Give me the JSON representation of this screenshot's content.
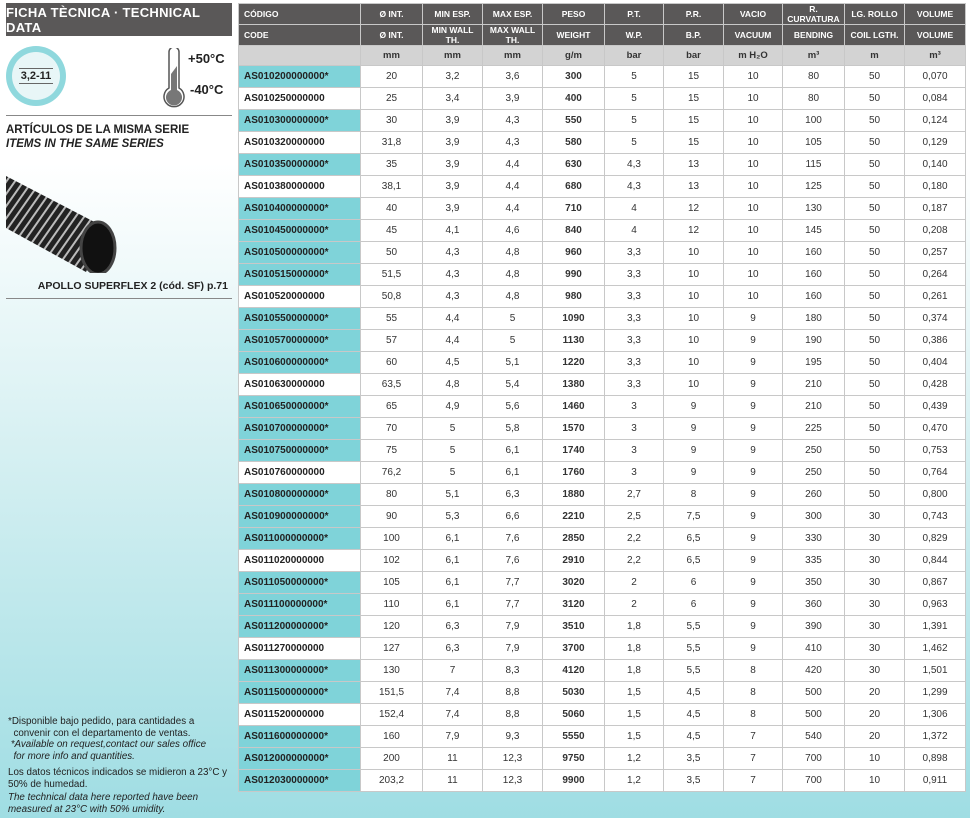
{
  "left": {
    "title": "FICHA TÈCNICA · TECHNICAL DATA",
    "badge": "3,2-11",
    "temp_max": "+50°C",
    "temp_min": "-40°C",
    "series_es": "ARTÍCULOS DE LA MISMA SERIE",
    "series_en": "ITEMS IN THE SAME SERIES",
    "product": "APOLLO SUPERFLEX 2  (cód. SF) p.71",
    "notes": [
      "*Disponible bajo pedido, para cantidades a",
      "  convenir con el departamento de ventas.",
      " *Available on request,contact our sales office",
      "  for more info and quantities.",
      "Los datos técnicos indicados se midieron a 23°C y",
      "50% de humedad.",
      "The technical data here reported have been",
      "measured at 23°C with 50% umidity."
    ]
  },
  "colors": {
    "highlight": "#7fd3d9",
    "header": "#5a5858"
  },
  "table": {
    "header_es": [
      "CÓDIGO",
      "Ø INT.",
      "MIN ESP.",
      "MAX ESP.",
      "PESO",
      "P.T.",
      "P.R.",
      "VACIO",
      "R. CURVATURA",
      "LG. ROLLO",
      "VOLUME"
    ],
    "header_en": [
      "CODE",
      "Ø INT.",
      "MIN WALL TH.",
      "MAX WALL TH.",
      "WEIGHT",
      "W.P.",
      "B.P.",
      "VACUUM",
      "BENDING",
      "COIL LGTH.",
      "VOLUME"
    ],
    "units": [
      "",
      "mm",
      "mm",
      "mm",
      "g/m",
      "bar",
      "bar",
      "m H₂O",
      "m³",
      "m",
      "m³"
    ],
    "rows": [
      [
        "AS010200000000*",
        "20",
        "3,2",
        "3,6",
        "300",
        "5",
        "15",
        "10",
        "80",
        "50",
        "0,070"
      ],
      [
        "AS010250000000",
        "25",
        "3,4",
        "3,9",
        "400",
        "5",
        "15",
        "10",
        "80",
        "50",
        "0,084"
      ],
      [
        "AS010300000000*",
        "30",
        "3,9",
        "4,3",
        "550",
        "5",
        "15",
        "10",
        "100",
        "50",
        "0,124"
      ],
      [
        "AS010320000000",
        "31,8",
        "3,9",
        "4,3",
        "580",
        "5",
        "15",
        "10",
        "105",
        "50",
        "0,129"
      ],
      [
        "AS010350000000*",
        "35",
        "3,9",
        "4,4",
        "630",
        "4,3",
        "13",
        "10",
        "115",
        "50",
        "0,140"
      ],
      [
        "AS010380000000",
        "38,1",
        "3,9",
        "4,4",
        "680",
        "4,3",
        "13",
        "10",
        "125",
        "50",
        "0,180"
      ],
      [
        "AS010400000000*",
        "40",
        "3,9",
        "4,4",
        "710",
        "4",
        "12",
        "10",
        "130",
        "50",
        "0,187"
      ],
      [
        "AS010450000000*",
        "45",
        "4,1",
        "4,6",
        "840",
        "4",
        "12",
        "10",
        "145",
        "50",
        "0,208"
      ],
      [
        "AS010500000000*",
        "50",
        "4,3",
        "4,8",
        "960",
        "3,3",
        "10",
        "10",
        "160",
        "50",
        "0,257"
      ],
      [
        "AS010515000000*",
        "51,5",
        "4,3",
        "4,8",
        "990",
        "3,3",
        "10",
        "10",
        "160",
        "50",
        "0,264"
      ],
      [
        "AS010520000000",
        "50,8",
        "4,3",
        "4,8",
        "980",
        "3,3",
        "10",
        "10",
        "160",
        "50",
        "0,261"
      ],
      [
        "AS010550000000*",
        "55",
        "4,4",
        "5",
        "1090",
        "3,3",
        "10",
        "9",
        "180",
        "50",
        "0,374"
      ],
      [
        "AS010570000000*",
        "57",
        "4,4",
        "5",
        "1130",
        "3,3",
        "10",
        "9",
        "190",
        "50",
        "0,386"
      ],
      [
        "AS010600000000*",
        "60",
        "4,5",
        "5,1",
        "1220",
        "3,3",
        "10",
        "9",
        "195",
        "50",
        "0,404"
      ],
      [
        "AS010630000000",
        "63,5",
        "4,8",
        "5,4",
        "1380",
        "3,3",
        "10",
        "9",
        "210",
        "50",
        "0,428"
      ],
      [
        "AS010650000000*",
        "65",
        "4,9",
        "5,6",
        "1460",
        "3",
        "9",
        "9",
        "210",
        "50",
        "0,439"
      ],
      [
        "AS010700000000*",
        "70",
        "5",
        "5,8",
        "1570",
        "3",
        "9",
        "9",
        "225",
        "50",
        "0,470"
      ],
      [
        "AS010750000000*",
        "75",
        "5",
        "6,1",
        "1740",
        "3",
        "9",
        "9",
        "250",
        "50",
        "0,753"
      ],
      [
        "AS010760000000",
        "76,2",
        "5",
        "6,1",
        "1760",
        "3",
        "9",
        "9",
        "250",
        "50",
        "0,764"
      ],
      [
        "AS010800000000*",
        "80",
        "5,1",
        "6,3",
        "1880",
        "2,7",
        "8",
        "9",
        "260",
        "50",
        "0,800"
      ],
      [
        "AS010900000000*",
        "90",
        "5,3",
        "6,6",
        "2210",
        "2,5",
        "7,5",
        "9",
        "300",
        "30",
        "0,743"
      ],
      [
        "AS011000000000*",
        "100",
        "6,1",
        "7,6",
        "2850",
        "2,2",
        "6,5",
        "9",
        "330",
        "30",
        "0,829"
      ],
      [
        "AS011020000000",
        "102",
        "6,1",
        "7,6",
        "2910",
        "2,2",
        "6,5",
        "9",
        "335",
        "30",
        "0,844"
      ],
      [
        "AS011050000000*",
        "105",
        "6,1",
        "7,7",
        "3020",
        "2",
        "6",
        "9",
        "350",
        "30",
        "0,867"
      ],
      [
        "AS011100000000*",
        "110",
        "6,1",
        "7,7",
        "3120",
        "2",
        "6",
        "9",
        "360",
        "30",
        "0,963"
      ],
      [
        "AS011200000000*",
        "120",
        "6,3",
        "7,9",
        "3510",
        "1,8",
        "5,5",
        "9",
        "390",
        "30",
        "1,391"
      ],
      [
        "AS011270000000",
        "127",
        "6,3",
        "7,9",
        "3700",
        "1,8",
        "5,5",
        "9",
        "410",
        "30",
        "1,462"
      ],
      [
        "AS011300000000*",
        "130",
        "7",
        "8,3",
        "4120",
        "1,8",
        "5,5",
        "8",
        "420",
        "30",
        "1,501"
      ],
      [
        "AS011500000000*",
        "151,5",
        "7,4",
        "8,8",
        "5030",
        "1,5",
        "4,5",
        "8",
        "500",
        "20",
        "1,299"
      ],
      [
        "AS011520000000",
        "152,4",
        "7,4",
        "8,8",
        "5060",
        "1,5",
        "4,5",
        "8",
        "500",
        "20",
        "1,306"
      ],
      [
        "AS011600000000*",
        "160",
        "7,9",
        "9,3",
        "5550",
        "1,5",
        "4,5",
        "7",
        "540",
        "20",
        "1,372"
      ],
      [
        "AS012000000000*",
        "200",
        "11",
        "12,3",
        "9750",
        "1,2",
        "3,5",
        "7",
        "700",
        "10",
        "0,898"
      ],
      [
        "AS012030000000*",
        "203,2",
        "11",
        "12,3",
        "9900",
        "1,2",
        "3,5",
        "7",
        "700",
        "10",
        "0,911"
      ]
    ]
  }
}
